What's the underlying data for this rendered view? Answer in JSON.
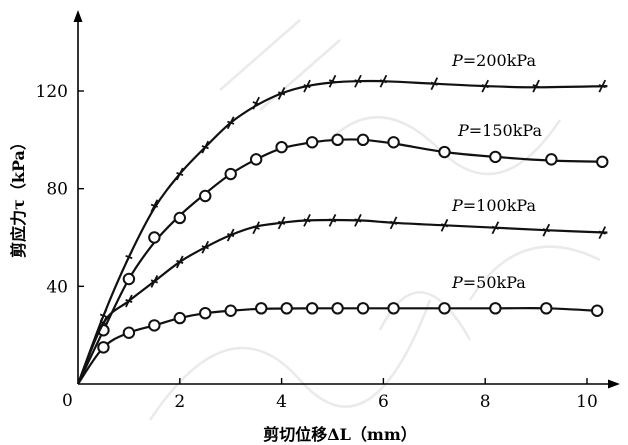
{
  "chart_data": {
    "type": "line",
    "title": "",
    "xlabel": "剪切位移ΔL（mm）",
    "ylabel": "剪应力τ（kPa）",
    "xlim": [
      0,
      10.5
    ],
    "ylim": [
      0,
      135
    ],
    "x_ticks": [
      0,
      2,
      4,
      6,
      8,
      10
    ],
    "x_tick_labels": [
      "0",
      "2",
      "4",
      "6",
      "8",
      "10"
    ],
    "y_ticks": [
      40,
      80,
      120
    ],
    "y_tick_labels": [
      "40",
      "80",
      "120"
    ],
    "grid": false,
    "origin_label": "0",
    "series": [
      {
        "name": "P=200kPa",
        "label_prefix": "P",
        "label_rest": "=200kPa",
        "marker": "cross",
        "points": [
          [
            0.5,
            28
          ],
          [
            1.0,
            52
          ],
          [
            1.5,
            73
          ],
          [
            2.0,
            86
          ],
          [
            2.5,
            97
          ],
          [
            3.0,
            107
          ],
          [
            3.5,
            115
          ],
          [
            4.0,
            119
          ],
          [
            4.5,
            122
          ],
          [
            5.0,
            124
          ],
          [
            5.5,
            124
          ],
          [
            6.0,
            124
          ],
          [
            7.0,
            123
          ],
          [
            8.0,
            122
          ],
          [
            9.0,
            122
          ],
          [
            10.3,
            122
          ]
        ],
        "curve": [
          [
            0,
            0
          ],
          [
            0.5,
            28
          ],
          [
            1.0,
            52
          ],
          [
            1.5,
            72
          ],
          [
            2.0,
            86
          ],
          [
            2.5,
            97
          ],
          [
            3.0,
            107
          ],
          [
            3.5,
            114
          ],
          [
            4.0,
            119
          ],
          [
            4.5,
            122
          ],
          [
            5.0,
            123.5
          ],
          [
            5.5,
            124
          ],
          [
            6.0,
            124
          ],
          [
            7.0,
            123
          ],
          [
            8.0,
            122
          ],
          [
            9.0,
            121.5
          ],
          [
            10.4,
            122
          ]
        ]
      },
      {
        "name": "P=150kPa",
        "label_prefix": "P",
        "label_rest": "=150kPa",
        "marker": "circle",
        "points": [
          [
            0.5,
            22
          ],
          [
            1.0,
            43
          ],
          [
            1.5,
            60
          ],
          [
            2.0,
            68
          ],
          [
            2.5,
            77
          ],
          [
            3.0,
            86
          ],
          [
            3.5,
            92
          ],
          [
            4.0,
            97
          ],
          [
            4.6,
            99
          ],
          [
            5.1,
            100
          ],
          [
            5.6,
            100
          ],
          [
            6.2,
            99
          ],
          [
            7.2,
            95
          ],
          [
            8.2,
            93
          ],
          [
            9.3,
            92
          ],
          [
            10.3,
            91
          ]
        ],
        "curve": [
          [
            0,
            0
          ],
          [
            0.5,
            22
          ],
          [
            1.0,
            43
          ],
          [
            1.5,
            58
          ],
          [
            2.0,
            69
          ],
          [
            2.5,
            78
          ],
          [
            3.0,
            86
          ],
          [
            3.5,
            92
          ],
          [
            4.0,
            96.5
          ],
          [
            4.6,
            99
          ],
          [
            5.1,
            100
          ],
          [
            5.6,
            100
          ],
          [
            6.2,
            98.5
          ],
          [
            7.2,
            95
          ],
          [
            8.2,
            93
          ],
          [
            9.3,
            91.5
          ],
          [
            10.4,
            91
          ]
        ]
      },
      {
        "name": "P=100kPa",
        "label_prefix": "P",
        "label_rest": "=100kPa",
        "marker": "cross",
        "points": [
          [
            0.5,
            25
          ],
          [
            1.0,
            34
          ],
          [
            1.5,
            42
          ],
          [
            2.0,
            50
          ],
          [
            2.5,
            56
          ],
          [
            3.0,
            61
          ],
          [
            3.5,
            64
          ],
          [
            4.0,
            66
          ],
          [
            4.5,
            67
          ],
          [
            5.0,
            67
          ],
          [
            5.5,
            67
          ],
          [
            6.2,
            66
          ],
          [
            7.2,
            65
          ],
          [
            8.2,
            64
          ],
          [
            9.2,
            63
          ],
          [
            10.3,
            62
          ]
        ],
        "curve": [
          [
            0,
            0
          ],
          [
            0.5,
            25
          ],
          [
            1.0,
            34
          ],
          [
            1.5,
            42
          ],
          [
            2.0,
            50
          ],
          [
            2.5,
            56
          ],
          [
            3.0,
            61
          ],
          [
            3.5,
            64.5
          ],
          [
            4.0,
            66
          ],
          [
            4.5,
            67
          ],
          [
            5.5,
            67
          ],
          [
            6.2,
            66
          ],
          [
            7.2,
            65
          ],
          [
            8.2,
            64
          ],
          [
            9.2,
            63
          ],
          [
            10.4,
            62
          ]
        ]
      },
      {
        "name": "P=50kPa",
        "label_prefix": "P",
        "label_rest": "=50kPa",
        "marker": "circle",
        "points": [
          [
            0.5,
            15
          ],
          [
            1.0,
            21
          ],
          [
            1.5,
            24
          ],
          [
            2.0,
            27
          ],
          [
            2.5,
            29
          ],
          [
            3.0,
            30
          ],
          [
            3.6,
            31
          ],
          [
            4.1,
            31
          ],
          [
            4.6,
            31
          ],
          [
            5.1,
            31
          ],
          [
            5.6,
            31
          ],
          [
            6.2,
            31
          ],
          [
            7.2,
            31
          ],
          [
            8.2,
            31
          ],
          [
            9.2,
            31
          ],
          [
            10.2,
            30
          ]
        ],
        "curve": [
          [
            0,
            0
          ],
          [
            0.5,
            15
          ],
          [
            1.0,
            21
          ],
          [
            1.5,
            24
          ],
          [
            2.0,
            27
          ],
          [
            2.5,
            29
          ],
          [
            3.0,
            30
          ],
          [
            3.6,
            30.8
          ],
          [
            4.6,
            31
          ],
          [
            6.2,
            31
          ],
          [
            8.2,
            31
          ],
          [
            9.2,
            31
          ],
          [
            10.2,
            30
          ]
        ]
      }
    ]
  }
}
